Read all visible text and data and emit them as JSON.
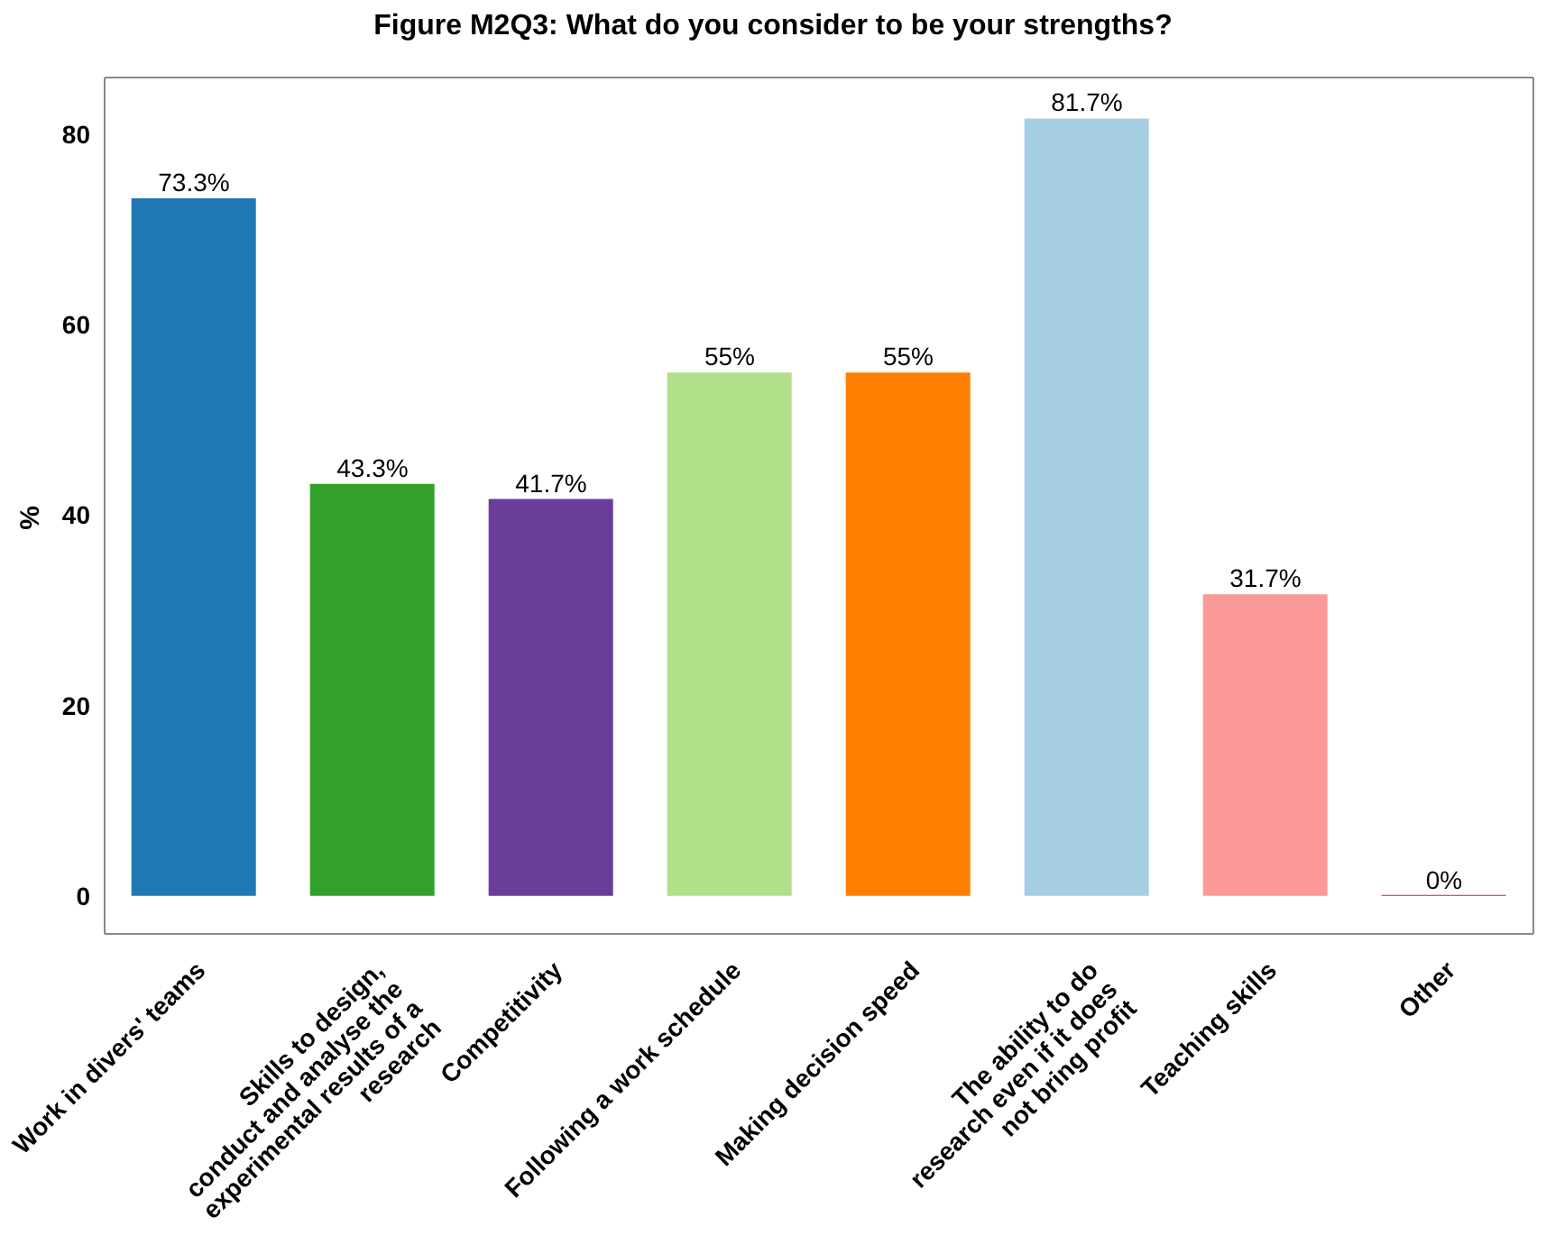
{
  "chart_data": {
    "type": "bar",
    "title": "Figure M2Q3: What do you consider to be your strengths?",
    "ylabel": "%",
    "categories": [
      "Work in divers' teams",
      "Skills to design,\nconduct and analyse the\nexperimental results of a\nresearch",
      "Competitivity",
      "Following a work schedule",
      "Making decision speed",
      "The ability to do\nresearch even if it does\nnot bring profit",
      "Teaching skills",
      "Other"
    ],
    "values": [
      73.3,
      43.3,
      41.7,
      55,
      55,
      81.7,
      31.7,
      0
    ],
    "colors": [
      "#1f78b4",
      "#33a02c",
      "#6a3d9a",
      "#b2df8a",
      "#ff7f00",
      "#a6cee3",
      "#fb9a99",
      "#e31a1c"
    ],
    "value_labels": [
      "73.3%",
      "43.3%",
      "41.7%",
      "55%",
      "55%",
      "81.7%",
      "31.7%",
      "0%"
    ],
    "ylim": [
      -4,
      86
    ],
    "yticks": [
      0,
      20,
      40,
      60,
      80
    ],
    "grid": false,
    "legend": false
  }
}
